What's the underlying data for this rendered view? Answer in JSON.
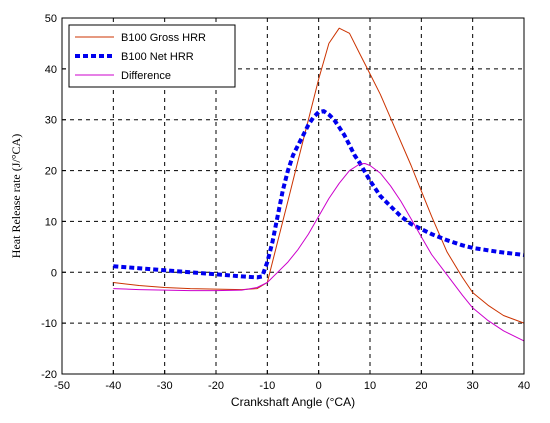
{
  "chart_data": {
    "type": "line",
    "title": "",
    "xlabel": "Crankshaft Angle  (°CA)",
    "ylabel": "Heat Release rate (J/°CA)",
    "xlim": [
      -50,
      40
    ],
    "ylim": [
      -20,
      50
    ],
    "xticks": [
      -50,
      -40,
      -30,
      -20,
      -10,
      0,
      10,
      20,
      30,
      40
    ],
    "yticks": [
      -20,
      -10,
      0,
      10,
      20,
      30,
      40,
      50
    ],
    "grid": true,
    "legend_position": "top-left",
    "series": [
      {
        "name": "B100 Gross  HRR",
        "color": "#cc3300",
        "style": "solid",
        "x": [
          -40,
          -35,
          -30,
          -25,
          -20,
          -15,
          -12,
          -10,
          -8,
          -6,
          -4,
          -2,
          0,
          2,
          4,
          6,
          8,
          10,
          12,
          15,
          18,
          20,
          22,
          25,
          28,
          30,
          33,
          36,
          40
        ],
        "y": [
          -2,
          -2.6,
          -3,
          -3.2,
          -3.3,
          -3.4,
          -3.2,
          -2,
          6,
          14,
          22,
          30,
          38,
          45,
          48,
          47,
          43,
          39,
          35,
          28,
          21,
          16,
          11,
          4,
          -1,
          -4,
          -6.5,
          -8.5,
          -10
        ]
      },
      {
        "name": "B100 Net HRR",
        "color": "#0000ee",
        "style": "dashed",
        "x": [
          -40,
          -35,
          -30,
          -25,
          -20,
          -15,
          -12,
          -11,
          -10,
          -9,
          -8,
          -7,
          -6,
          -5,
          -4,
          -3,
          -2,
          -1,
          0,
          1,
          2,
          3,
          4,
          5,
          6,
          7,
          8,
          10,
          12,
          14,
          16,
          18,
          20,
          22,
          25,
          28,
          30,
          35,
          40
        ],
        "y": [
          1.2,
          0.8,
          0.4,
          0,
          -0.4,
          -0.8,
          -1,
          -0.8,
          2,
          6,
          11,
          16,
          20,
          23,
          25,
          27,
          29,
          30.5,
          31.5,
          31.7,
          31,
          30,
          28.5,
          27,
          25,
          23,
          21.5,
          18,
          15,
          13,
          11,
          9.5,
          8.5,
          7.5,
          6.3,
          5.3,
          4.8,
          4,
          3.4
        ]
      },
      {
        "name": "Difference",
        "color": "#cc00cc",
        "style": "solid",
        "x": [
          -40,
          -35,
          -30,
          -25,
          -20,
          -15,
          -12,
          -10,
          -8,
          -6,
          -4,
          -2,
          0,
          2,
          4,
          6,
          8,
          9,
          10,
          12,
          14,
          16,
          18,
          20,
          22,
          25,
          28,
          30,
          33,
          36,
          40
        ],
        "y": [
          -3.2,
          -3.4,
          -3.5,
          -3.6,
          -3.6,
          -3.5,
          -3,
          -2,
          0,
          2,
          4.5,
          7.5,
          11,
          14.5,
          17.5,
          20,
          21.3,
          21.4,
          21,
          19.5,
          17,
          14,
          10.5,
          7,
          3.5,
          -0.5,
          -4.5,
          -7,
          -9.5,
          -11.5,
          -13.5
        ]
      }
    ]
  }
}
